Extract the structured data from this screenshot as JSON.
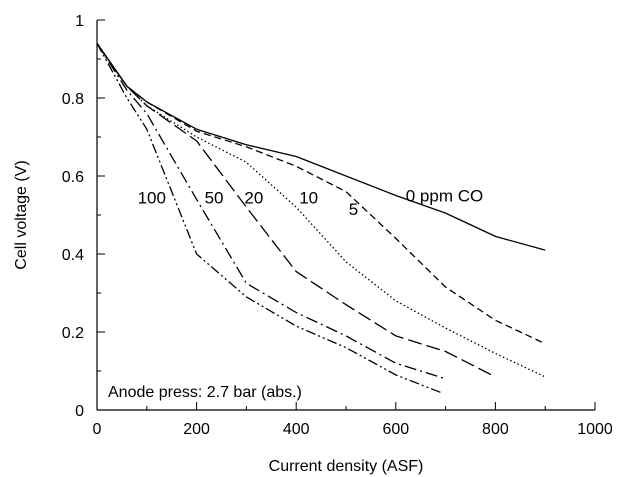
{
  "chart_data": {
    "type": "line",
    "xlabel": "Current density (ASF)",
    "ylabel": "Cell voltage (V)",
    "xlim": [
      0,
      1000
    ],
    "ylim": [
      0,
      1
    ],
    "xticks": [
      0,
      200,
      400,
      600,
      800,
      1000
    ],
    "yticks": [
      0,
      0.2,
      0.4,
      0.6,
      0.8,
      1
    ],
    "yticklabels": [
      "0",
      "0.2",
      "0.4",
      "0.6",
      "0.8",
      "1"
    ],
    "grid": false,
    "legend": "none",
    "annotation": "Anode press: 2.7 bar (abs.)",
    "series": [
      {
        "name": "0 ppm CO",
        "style": "solid",
        "x": [
          0,
          60,
          100,
          200,
          300,
          400,
          500,
          600,
          700,
          800,
          900
        ],
        "y": [
          0.94,
          0.83,
          0.79,
          0.72,
          0.68,
          0.65,
          0.6,
          0.55,
          0.505,
          0.445,
          0.41
        ]
      },
      {
        "name": "5",
        "style": "dashed",
        "x": [
          0,
          60,
          100,
          200,
          300,
          400,
          500,
          600,
          700,
          800,
          900
        ],
        "y": [
          0.94,
          0.83,
          0.79,
          0.715,
          0.675,
          0.625,
          0.56,
          0.44,
          0.315,
          0.23,
          0.17
        ]
      },
      {
        "name": "10",
        "style": "dotted",
        "x": [
          0,
          60,
          100,
          200,
          300,
          400,
          500,
          600,
          700,
          800,
          900
        ],
        "y": [
          0.94,
          0.83,
          0.78,
          0.7,
          0.635,
          0.52,
          0.38,
          0.28,
          0.21,
          0.145,
          0.085
        ]
      },
      {
        "name": "20",
        "style": "long-dash",
        "x": [
          0,
          60,
          100,
          200,
          300,
          400,
          500,
          600,
          700,
          800
        ],
        "y": [
          0.94,
          0.83,
          0.78,
          0.69,
          0.52,
          0.355,
          0.27,
          0.19,
          0.15,
          0.085
        ]
      },
      {
        "name": "50",
        "style": "dash-dot",
        "x": [
          0,
          60,
          100,
          200,
          300,
          400,
          500,
          600,
          700
        ],
        "y": [
          0.94,
          0.82,
          0.76,
          0.54,
          0.325,
          0.25,
          0.19,
          0.12,
          0.08
        ]
      },
      {
        "name": "100",
        "style": "dash-dot-dot",
        "x": [
          0,
          60,
          100,
          200,
          300,
          400,
          500,
          600,
          690
        ],
        "y": [
          0.94,
          0.8,
          0.72,
          0.4,
          0.29,
          0.215,
          0.16,
          0.09,
          0.045
        ]
      }
    ],
    "colors": {
      "line": "#000000",
      "background": "#ffffff"
    }
  }
}
